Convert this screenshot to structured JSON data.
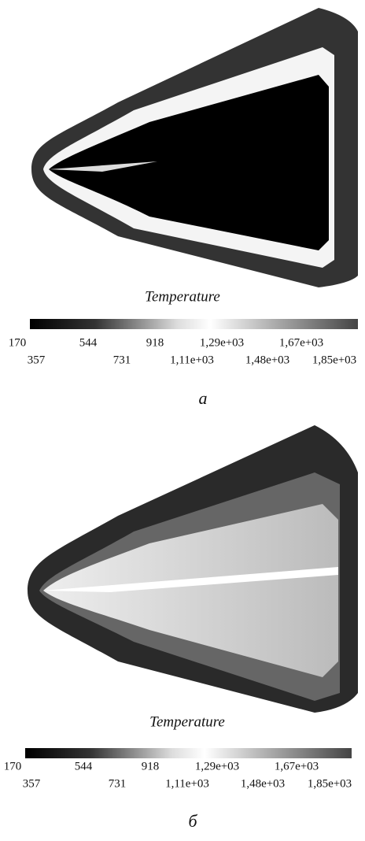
{
  "panels": [
    {
      "title": "Temperature",
      "ticks_top": [
        "170",
        "544",
        "918",
        "1,29e+03",
        "1,67e+03"
      ],
      "ticks_bottom": [
        "357",
        "731",
        "1,11e+03",
        "1,48e+03",
        "1,85e+03"
      ],
      "caption": "a"
    },
    {
      "title": "Temperature",
      "ticks_top": [
        "170",
        "544",
        "918",
        "1,29e+03",
        "1,67e+03"
      ],
      "ticks_bottom": [
        "357",
        "731",
        "1,11e+03",
        "1,48e+03",
        "1,85e+03"
      ],
      "caption": "б"
    }
  ]
}
